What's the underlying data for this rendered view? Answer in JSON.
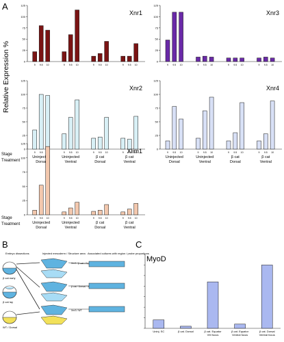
{
  "panels": {
    "A": "A",
    "B": "B",
    "C": "C"
  },
  "panel_a": {
    "ylabel": "Relative Expression %",
    "stage_label": "Stage",
    "treatment_label": "Treatment",
    "treatments": [
      "Uninjected Dorsal",
      "Uninjected Ventral",
      "β cat Dorsal",
      "β cat Ventral"
    ],
    "stages": [
      "9",
      "9.5",
      "10"
    ]
  },
  "chart_data": [
    {
      "type": "bar",
      "title": "Xnr1",
      "color": "#7a1414",
      "ylim": [
        0,
        125
      ],
      "yticks": [
        0,
        25,
        50,
        75,
        100,
        125
      ],
      "groups": [
        "Uninjected Dorsal",
        "Uninjected Ventral",
        "β cat Dorsal",
        "β cat Ventral"
      ],
      "stages": [
        "9",
        "9.5",
        "10"
      ],
      "values": [
        [
          22,
          80,
          70
        ],
        [
          22,
          60,
          115
        ],
        [
          12,
          18,
          45
        ],
        [
          12,
          12,
          40
        ]
      ]
    },
    {
      "type": "bar",
      "title": "Xnr3",
      "color": "#6a2aa8",
      "ylim": [
        0,
        125
      ],
      "yticks": [
        0,
        25,
        50,
        75,
        100,
        125
      ],
      "groups": [
        "Uninjected Dorsal",
        "Uninjected Ventral",
        "β cat Dorsal",
        "β cat Ventral"
      ],
      "stages": [
        "9",
        "9.5",
        "10"
      ],
      "values": [
        [
          48,
          110,
          110
        ],
        [
          10,
          12,
          10
        ],
        [
          8,
          8,
          8
        ],
        [
          8,
          10,
          8
        ]
      ]
    },
    {
      "type": "bar",
      "title": "Xnr2",
      "color": "#d8f0f6",
      "ylim": [
        0,
        125
      ],
      "yticks": [
        0,
        25,
        50,
        75,
        100,
        125
      ],
      "groups": [
        "Uninjected Dorsal",
        "Uninjected Ventral",
        "β cat Dorsal",
        "β cat Ventral"
      ],
      "stages": [
        "9",
        "9.5",
        "10"
      ],
      "values": [
        [
          35,
          100,
          98
        ],
        [
          28,
          58,
          90
        ],
        [
          20,
          22,
          58
        ],
        [
          20,
          18,
          60
        ]
      ]
    },
    {
      "type": "bar",
      "title": "Xnr4",
      "color": "#d8e0f6",
      "ylim": [
        0,
        125
      ],
      "yticks": [
        0,
        25,
        50,
        75,
        100,
        125
      ],
      "groups": [
        "Uninjected Dorsal",
        "Uninjected Ventral",
        "β cat Dorsal",
        "β cat Ventral"
      ],
      "stages": [
        "9",
        "9.5",
        "10"
      ],
      "values": [
        [
          15,
          78,
          55
        ],
        [
          20,
          70,
          95
        ],
        [
          15,
          30,
          85
        ],
        [
          15,
          28,
          88
        ]
      ]
    },
    {
      "type": "bar",
      "title": "Xlim1",
      "color": "#f3c8ae",
      "ylim": [
        0,
        125
      ],
      "yticks": [
        0,
        25,
        50,
        75,
        100,
        125
      ],
      "groups": [
        "Uninjected Dorsal",
        "Uninjected Ventral",
        "β cat Dorsal",
        "β cat Ventral"
      ],
      "stages": [
        "9",
        "9.5",
        "10"
      ],
      "values": [
        [
          8,
          52,
          120
        ],
        [
          5,
          12,
          22
        ],
        [
          6,
          8,
          18
        ],
        [
          5,
          10,
          20
        ]
      ]
    },
    {
      "type": "bar",
      "title": "MyoD",
      "color": "#aab8f0",
      "categories": [
        "Uninj. SC",
        "β cat. Dorsal",
        "β cat. Equator / VM focus",
        "β cat. Equator / Ventral focus",
        "β cat. Dorsal / Ventral focus"
      ],
      "values": [
        8,
        2,
        44,
        4,
        60
      ],
      "ylim": [
        0,
        70
      ]
    }
  ],
  "panel_b": {
    "col_headers": [
      "Embryo dissections",
      "Injected mesoderm / Structure area",
      "Associated cultures with region / probe proportions"
    ],
    "embryo_labels": [
      "β cat early",
      "β cat lay",
      "WT / Dorsal"
    ],
    "box_labels": [
      "Xnr1 / β cat / Dorsal",
      "β cat / Dorsal / Ventral",
      "Xnr3 / WT"
    ]
  }
}
